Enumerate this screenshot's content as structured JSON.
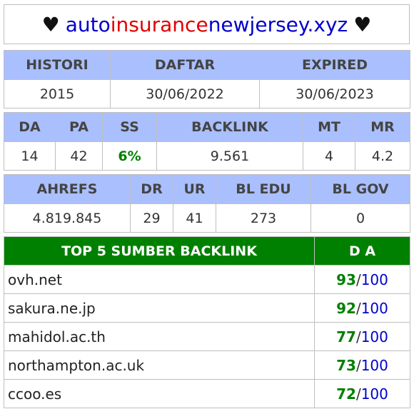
{
  "header": {
    "heart_left": "♥",
    "heart_right": "♥",
    "domain_part1": "auto",
    "domain_part2": "insurance",
    "domain_part3": "newjersey.xyz"
  },
  "info": {
    "headers": [
      "HISTORI",
      "DAFTAR",
      "EXPIRED"
    ],
    "values": [
      "2015",
      "30/06/2022",
      "30/06/2023"
    ]
  },
  "metrics": {
    "headers": [
      "DA",
      "PA",
      "SS",
      "BACKLINK",
      "MT",
      "MR"
    ],
    "values": [
      "14",
      "42",
      "6%",
      "9.561",
      "4",
      "4.2"
    ]
  },
  "ahrefs": {
    "headers": [
      "AHREFS",
      "DR",
      "UR",
      "BL EDU",
      "BL GOV"
    ],
    "values": [
      "4.819.845",
      "29",
      "41",
      "273",
      "0"
    ]
  },
  "backlinks": {
    "header_source": "TOP 5 SUMBER BACKLINK",
    "header_da": "D A",
    "max": "100",
    "separator": "/",
    "rows": [
      {
        "site": "ovh.net",
        "da": "93"
      },
      {
        "site": "sakura.ne.jp",
        "da": "92"
      },
      {
        "site": "mahidol.ac.th",
        "da": "77"
      },
      {
        "site": "northampton.ac.uk",
        "da": "73"
      },
      {
        "site": "ccoo.es",
        "da": "72"
      }
    ]
  },
  "colors": {
    "header_bg": "#aabffe",
    "top_header_bg": "#008000",
    "brand_blue": "#0000cc",
    "brand_red": "#e00000"
  }
}
